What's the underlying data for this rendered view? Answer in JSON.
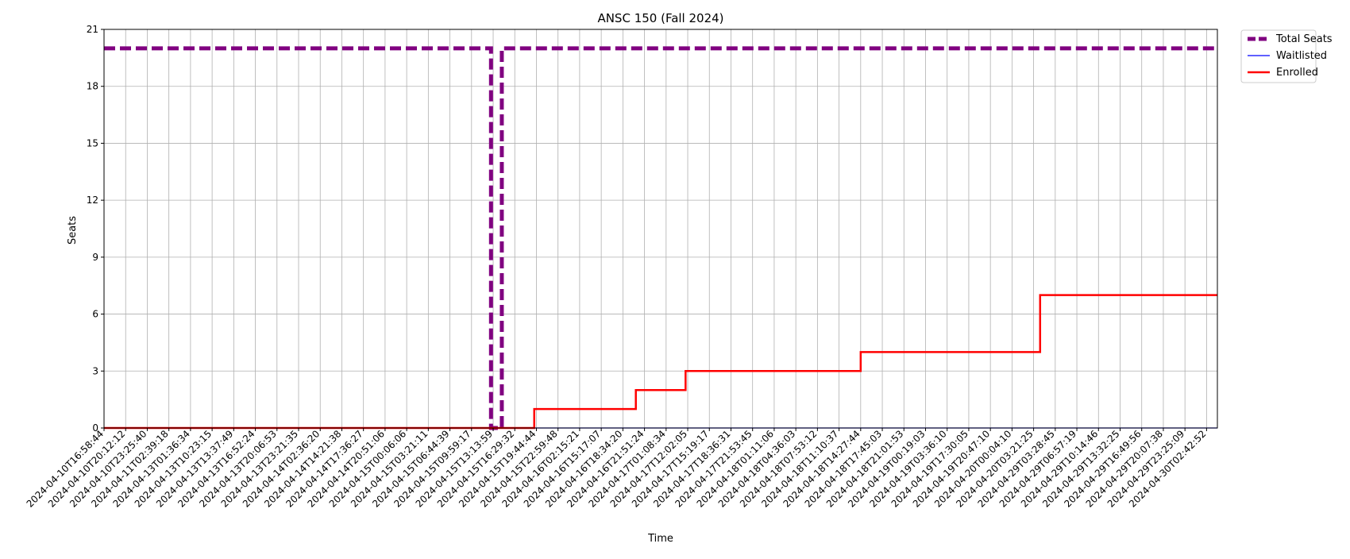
{
  "chart_data": {
    "type": "line",
    "title": "ANSC 150 (Fall 2024)",
    "xlabel": "Time",
    "ylabel": "Seats",
    "ylim": [
      0,
      21
    ],
    "yticks": [
      0,
      3,
      6,
      9,
      12,
      15,
      18,
      21
    ],
    "x_categories": [
      "2024-04-10T16:58:44",
      "2024-04-10T20:12:12",
      "2024-04-10T23:25:40",
      "2024-04-11T02:39:18",
      "2024-04-13T01:36:34",
      "2024-04-13T10:23:15",
      "2024-04-13T13:37:49",
      "2024-04-13T16:52:24",
      "2024-04-13T20:06:53",
      "2024-04-13T23:21:35",
      "2024-04-14T02:36:20",
      "2024-04-14T14:21:38",
      "2024-04-14T17:36:27",
      "2024-04-14T20:51:06",
      "2024-04-15T00:06:06",
      "2024-04-15T03:21:11",
      "2024-04-15T06:44:39",
      "2024-04-15T09:59:17",
      "2024-04-15T13:13:59",
      "2024-04-15T16:29:32",
      "2024-04-15T19:44:44",
      "2024-04-15T22:59:48",
      "2024-04-16T02:15:21",
      "2024-04-16T15:17:07",
      "2024-04-16T18:34:20",
      "2024-04-16T21:51:24",
      "2024-04-17T01:08:34",
      "2024-04-17T12:02:05",
      "2024-04-17T15:19:17",
      "2024-04-17T18:36:31",
      "2024-04-17T21:53:45",
      "2024-04-18T01:11:06",
      "2024-04-18T04:36:03",
      "2024-04-18T07:53:12",
      "2024-04-18T11:10:37",
      "2024-04-18T14:27:44",
      "2024-04-18T17:45:03",
      "2024-04-18T21:01:53",
      "2024-04-19T00:19:03",
      "2024-04-19T03:36:10",
      "2024-04-19T17:30:05",
      "2024-04-19T20:47:10",
      "2024-04-20T00:04:10",
      "2024-04-20T03:21:25",
      "2024-04-29T03:28:45",
      "2024-04-29T06:57:19",
      "2024-04-29T10:14:46",
      "2024-04-29T13:32:25",
      "2024-04-29T16:49:56",
      "2024-04-29T20:07:38",
      "2024-04-29T23:25:09",
      "2024-04-30T02:42:52"
    ],
    "x_range_index": [
      0,
      51.5
    ],
    "grid": true,
    "legend_position": "outside-top-right",
    "series": [
      {
        "name": "Total Seats",
        "color": "#800080",
        "style": "dashed",
        "points": [
          [
            0,
            20
          ],
          [
            17.9,
            20
          ],
          [
            17.9,
            0
          ],
          [
            18.4,
            0
          ],
          [
            18.4,
            20
          ],
          [
            51.5,
            20
          ]
        ]
      },
      {
        "name": "Waitlisted",
        "color": "#0000ff",
        "style": "solid",
        "points": [
          [
            0,
            0
          ],
          [
            51.5,
            0
          ]
        ]
      },
      {
        "name": "Enrolled",
        "color": "#ff0000",
        "style": "solid",
        "points": [
          [
            0,
            0
          ],
          [
            19.9,
            0
          ],
          [
            19.9,
            1
          ],
          [
            24.6,
            1
          ],
          [
            24.6,
            2
          ],
          [
            26.9,
            2
          ],
          [
            26.9,
            3
          ],
          [
            35.0,
            3
          ],
          [
            35.0,
            4
          ],
          [
            43.3,
            4
          ],
          [
            43.3,
            7
          ],
          [
            51.5,
            7
          ]
        ]
      }
    ]
  }
}
